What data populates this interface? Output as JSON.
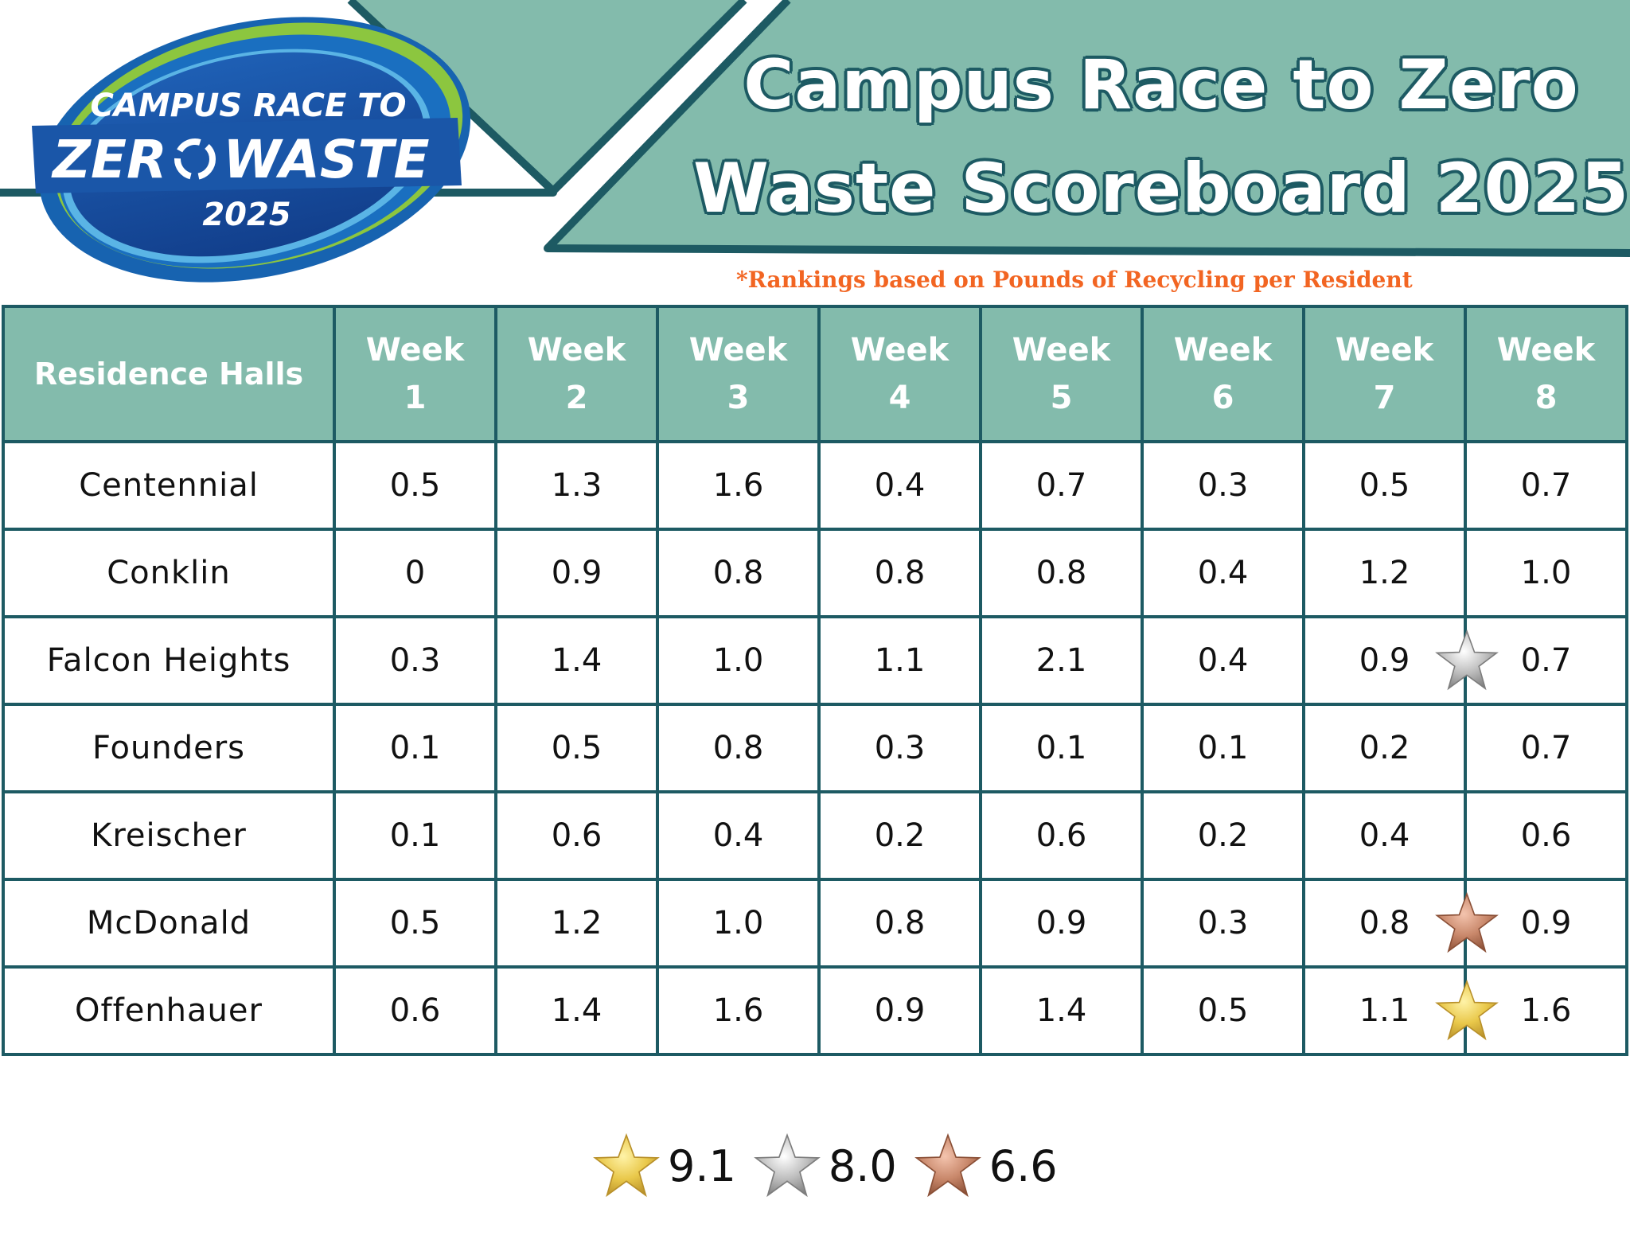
{
  "logo": {
    "line1": "CAMPUS RACE TO",
    "line2_a": "ZER",
    "line2_b": "WASTE",
    "line3": "2025",
    "icon": "recycle-icon"
  },
  "header": {
    "title_line1": "Campus Race to Zero",
    "title_line2": "Waste Scoreboard 2025",
    "note": "*Rankings based on Pounds of Recycling per Resident"
  },
  "colors": {
    "teal_band": "#83bbac",
    "dark_teal": "#1d5a63",
    "note_orange": "#f26522",
    "gold": "#e9c84a",
    "silver": "#b8b8b8",
    "bronze": "#c8876a"
  },
  "table": {
    "hall_header": "Residence Halls",
    "weeks": [
      {
        "w": "Week",
        "n": "1"
      },
      {
        "w": "Week",
        "n": "2"
      },
      {
        "w": "Week",
        "n": "3"
      },
      {
        "w": "Week",
        "n": "4"
      },
      {
        "w": "Week",
        "n": "5"
      },
      {
        "w": "Week",
        "n": "6"
      },
      {
        "w": "Week",
        "n": "7"
      },
      {
        "w": "Week",
        "n": "8"
      }
    ],
    "rows": [
      {
        "hall": "Centennial",
        "values": [
          "0.5",
          "1.3",
          "1.6",
          "0.4",
          "0.7",
          "0.3",
          "0.5",
          "0.7"
        ],
        "star": ""
      },
      {
        "hall": "Conklin",
        "values": [
          "0",
          "0.9",
          "0.8",
          "0.8",
          "0.8",
          "0.4",
          "1.2",
          "1.0"
        ],
        "star": ""
      },
      {
        "hall": "Falcon Heights",
        "values": [
          "0.3",
          "1.4",
          "1.0",
          "1.1",
          "2.1",
          "0.4",
          "0.9",
          "0.7"
        ],
        "star": "silver"
      },
      {
        "hall": "Founders",
        "values": [
          "0.1",
          "0.5",
          "0.8",
          "0.3",
          "0.1",
          "0.1",
          "0.2",
          "0.7"
        ],
        "star": ""
      },
      {
        "hall": "Kreischer",
        "values": [
          "0.1",
          "0.6",
          "0.4",
          "0.2",
          "0.6",
          "0.2",
          "0.4",
          "0.6"
        ],
        "star": ""
      },
      {
        "hall": "McDonald",
        "values": [
          "0.5",
          "1.2",
          "1.0",
          "0.8",
          "0.9",
          "0.3",
          "0.8",
          "0.9"
        ],
        "star": "bronze"
      },
      {
        "hall": "Offenhauer",
        "values": [
          "0.6",
          "1.4",
          "1.6",
          "0.9",
          "1.4",
          "0.5",
          "1.1",
          "1.6"
        ],
        "star": "gold"
      }
    ]
  },
  "legend": [
    {
      "medal": "gold",
      "value": "9.1"
    },
    {
      "medal": "silver",
      "value": "8.0"
    },
    {
      "medal": "bronze",
      "value": "6.6"
    }
  ]
}
